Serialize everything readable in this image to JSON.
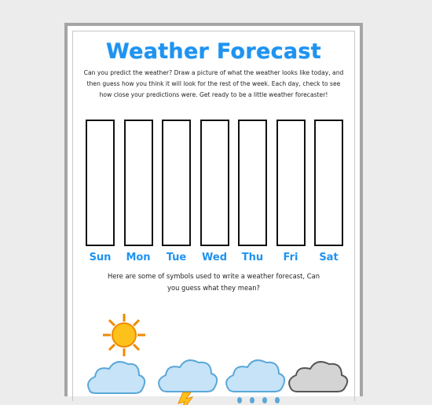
{
  "title": "Weather Forecast",
  "intro": "Can you predict the weather? Draw a picture of what the weather looks like today, and then guess how you think it will look for the rest of the week. Each day, check to see how close your predictions were. Get ready to be a little weather forecaster!",
  "days": [
    "Sun",
    "Mon",
    "Tue",
    "Wed",
    "Thu",
    "Fri",
    "Sat"
  ],
  "symbols_prompt": "Here are some of symbols used to write a weather forecast, Can you guess what they mean?"
}
